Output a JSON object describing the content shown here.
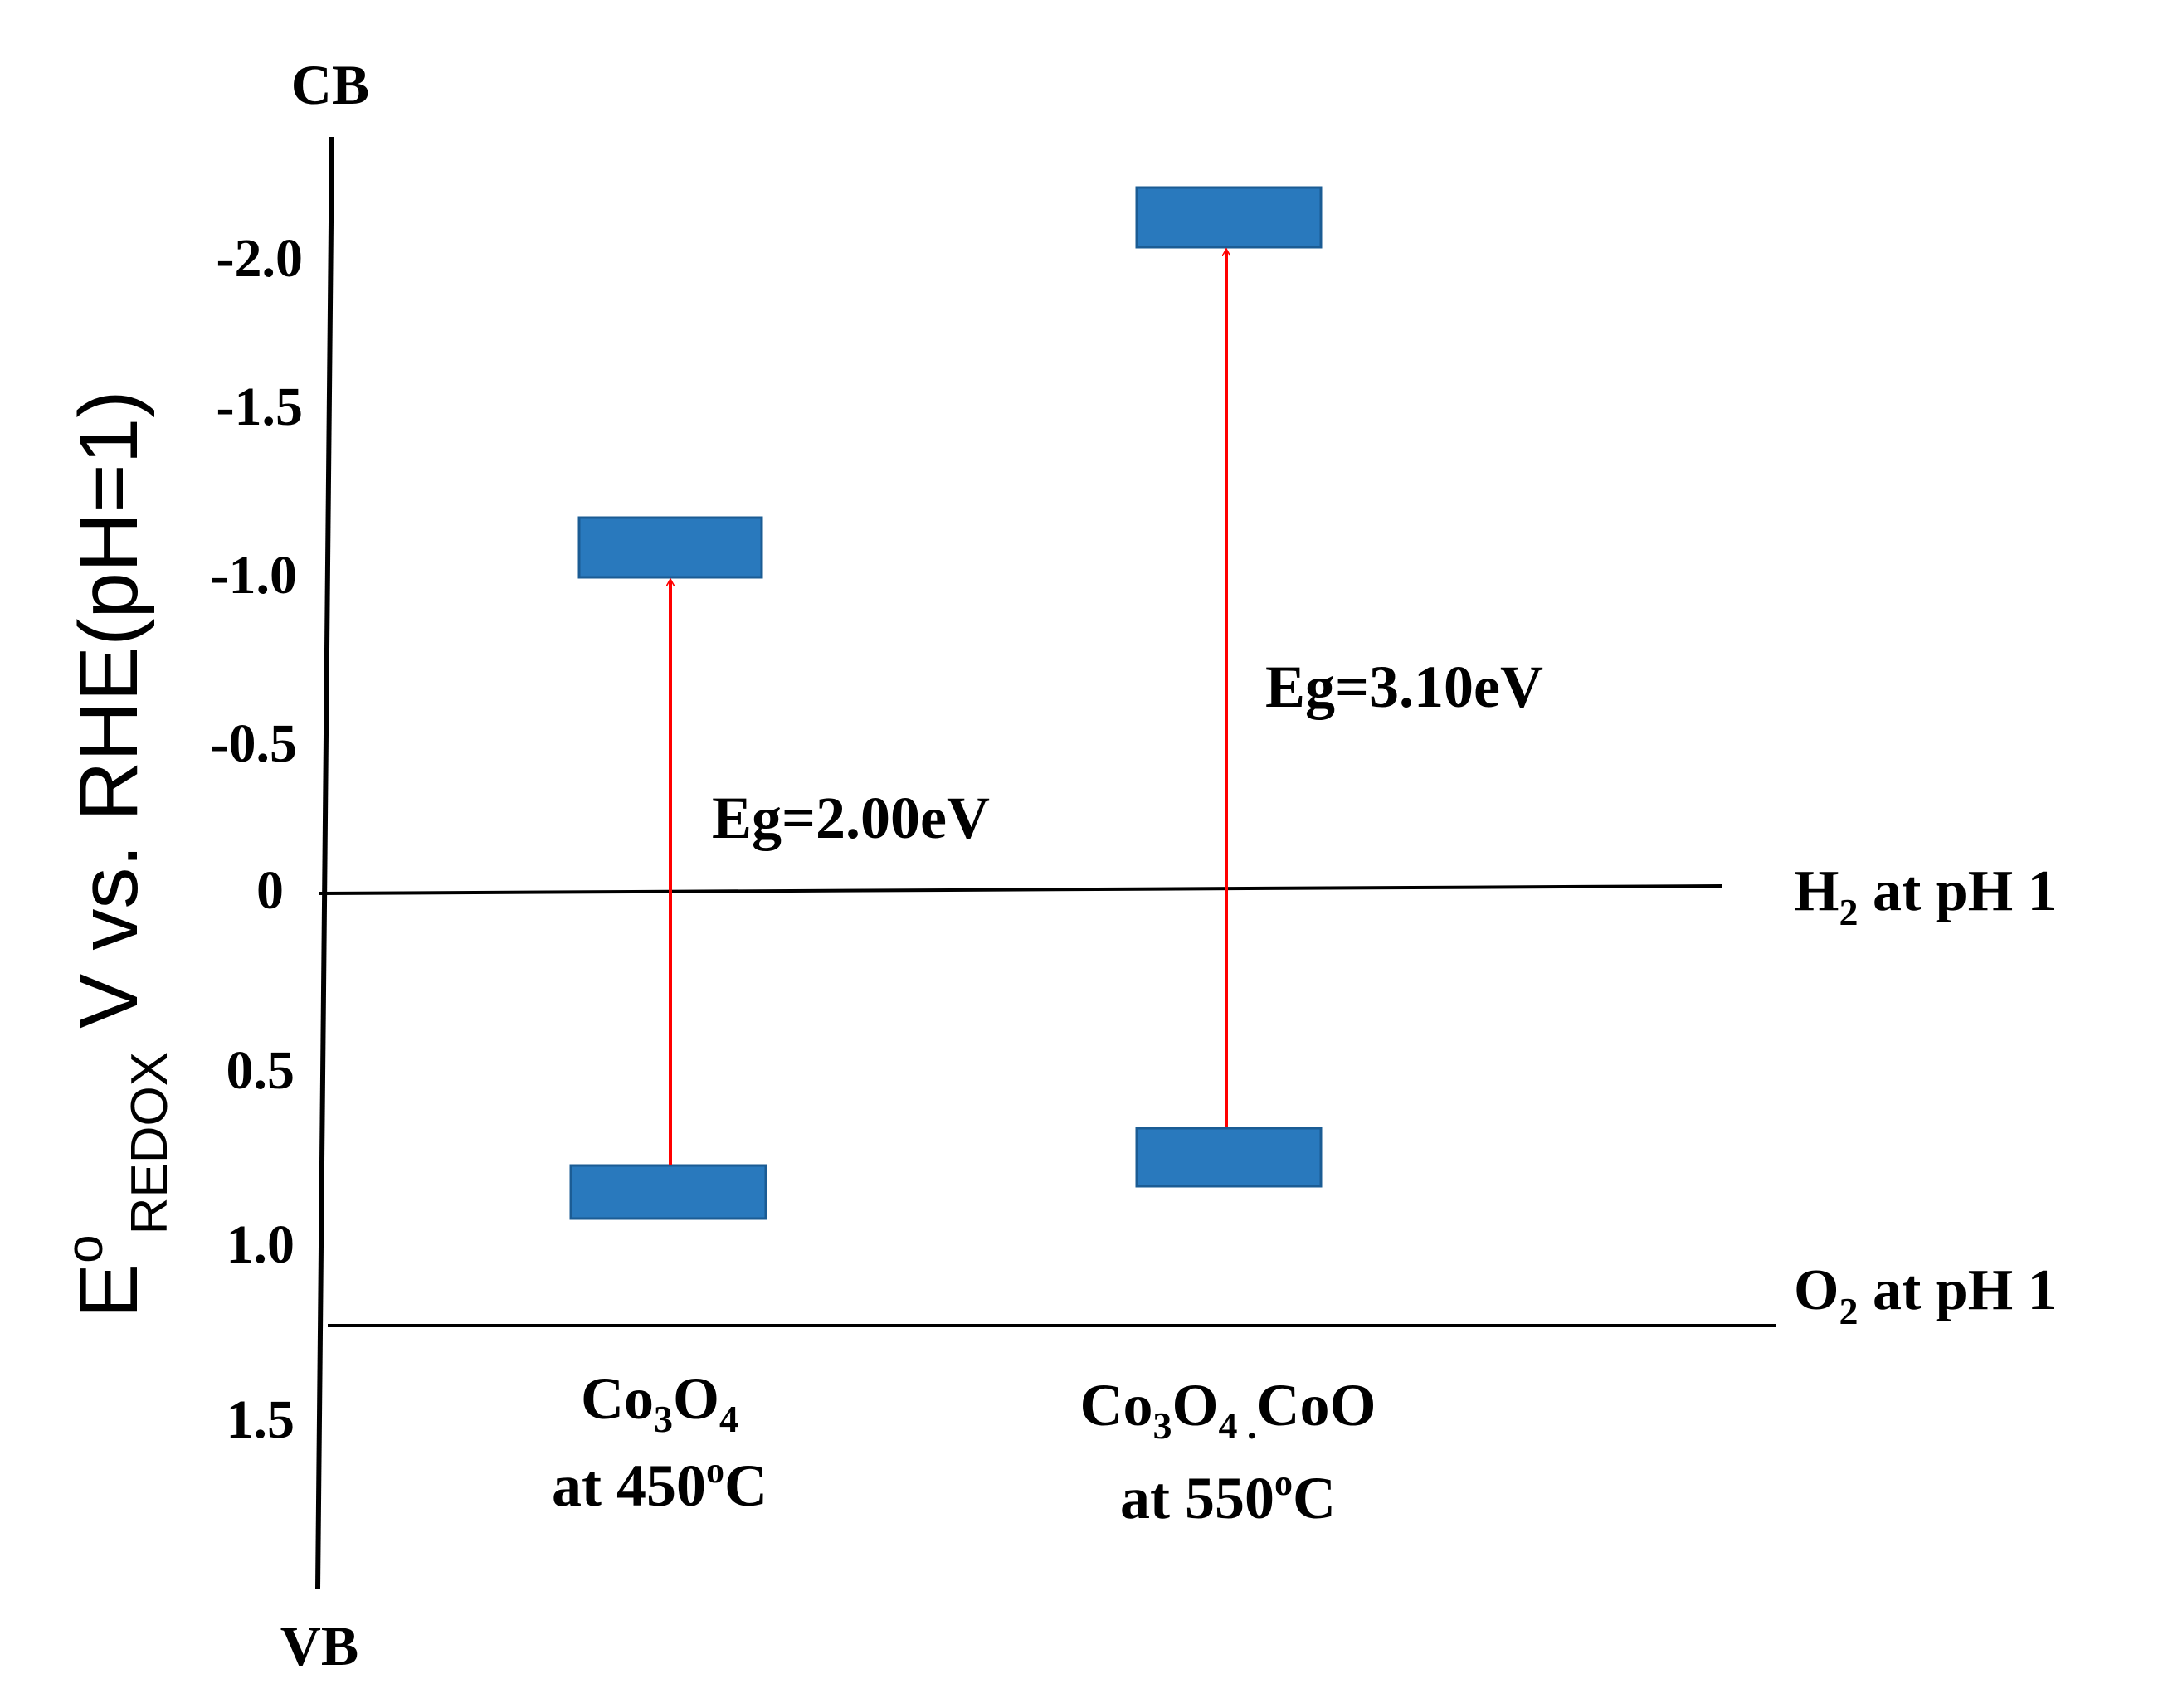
{
  "axis": {
    "top_label": "CB",
    "bottom_label": "VB",
    "ylabel": {
      "main": "E",
      "sup": "o",
      "sub": "REDOX",
      "rest": " V vs. RHE(pH=1)"
    },
    "ticks": [
      "-2.0",
      "-1.5",
      "-1.0",
      "-0.5",
      "0",
      "0.5",
      "1.0",
      "1.5"
    ]
  },
  "reference_lines": {
    "h2": {
      "species": "H",
      "sub": "2",
      "text": " at pH 1"
    },
    "o2": {
      "species": "O",
      "sub": "2",
      "text": " at pH 1"
    }
  },
  "materials": [
    {
      "name_parts": [
        [
          "Co",
          ""
        ],
        [
          "3",
          "sub"
        ],
        [
          "O",
          ""
        ],
        [
          "4",
          "sub"
        ]
      ],
      "temp_prefix": "at 450",
      "temp_sup": "o",
      "temp_suffix": "C",
      "band_gap_label": "Eg=2.00eV"
    },
    {
      "name_parts": [
        [
          "Co",
          ""
        ],
        [
          "3",
          "sub"
        ],
        [
          "O",
          ""
        ],
        [
          "4 .",
          "sub"
        ],
        [
          "CoO",
          ""
        ]
      ],
      "temp_prefix": "at 550",
      "temp_sup": "o",
      "temp_suffix": "C",
      "band_gap_label": "Eg=3.10eV"
    }
  ],
  "colors": {
    "band": "#2979bd",
    "band_edge": "#1b5c94",
    "arrow": "#ff0000",
    "axis": "#000000"
  }
}
